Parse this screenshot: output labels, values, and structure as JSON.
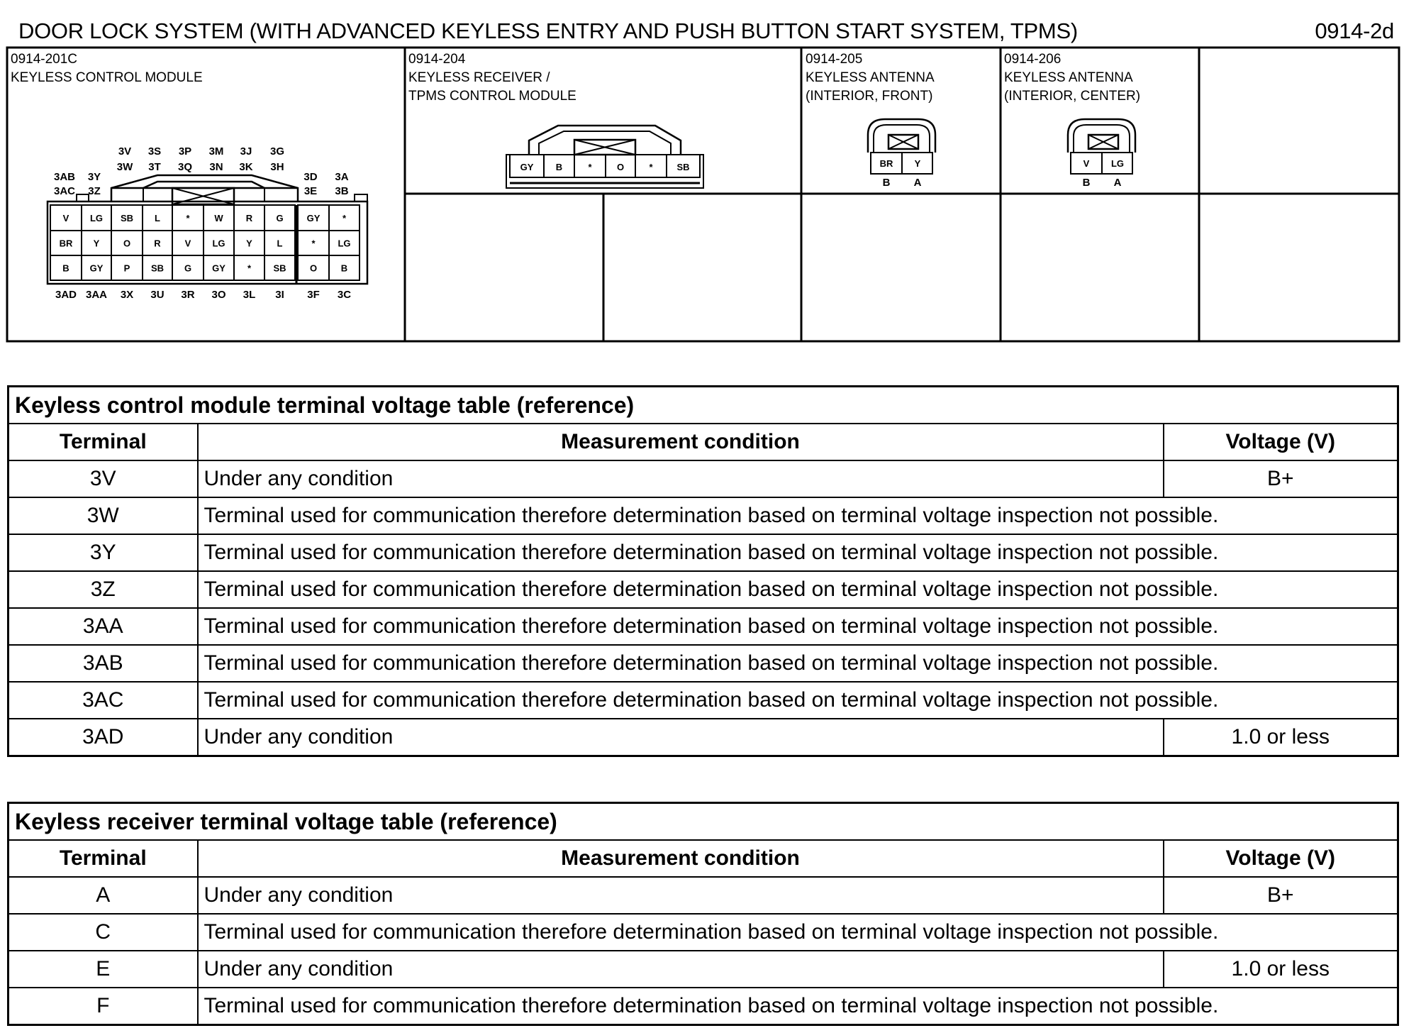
{
  "header": {
    "title": "DOOR LOCK SYSTEM (WITH ADVANCED KEYLESS ENTRY AND PUSH BUTTON START SYSTEM, TPMS)",
    "page_code": "0914-2d"
  },
  "connectors": {
    "kcm": {
      "code": "0914-201C",
      "name": "KEYLESS CONTROL MODULE",
      "top_labels_1": [
        "3V",
        "3S",
        "3P",
        "3M",
        "3J",
        "3G"
      ],
      "top_labels_2": [
        "3W",
        "3T",
        "3Q",
        "3N",
        "3K",
        "3H"
      ],
      "left_labels_1": [
        "3AB",
        "3Y"
      ],
      "left_labels_2": [
        "3AC",
        "3Z"
      ],
      "right_labels_1": [
        "3D",
        "3A"
      ],
      "right_labels_2": [
        "3E",
        "3B"
      ],
      "rows": [
        [
          "V",
          "LG",
          "SB",
          "L",
          "*",
          "W",
          "R",
          "G",
          "GY",
          "*"
        ],
        [
          "BR",
          "Y",
          "O",
          "R",
          "V",
          "LG",
          "Y",
          "L",
          "*",
          "LG"
        ],
        [
          "B",
          "GY",
          "P",
          "SB",
          "G",
          "GY",
          "*",
          "SB",
          "O",
          "B"
        ]
      ],
      "bottom_labels": [
        "3AD",
        "3AA",
        "3X",
        "3U",
        "3R",
        "3O",
        "3L",
        "3I",
        "3F",
        "3C"
      ]
    },
    "receiver": {
      "code": "0914-204",
      "name_line1": "KEYLESS RECEIVER /",
      "name_line2": "TPMS CONTROL MODULE",
      "cells": [
        "GY",
        "B",
        "*",
        "O",
        "*",
        "SB"
      ]
    },
    "antenna_front": {
      "code": "0914-205",
      "name_line1": "KEYLESS ANTENNA",
      "name_line2": "(INTERIOR, FRONT)",
      "cells": [
        "BR",
        "Y"
      ],
      "pins": [
        "B",
        "A"
      ]
    },
    "antenna_center": {
      "code": "0914-206",
      "name_line1": "KEYLESS ANTENNA",
      "name_line2": "(INTERIOR, CENTER)",
      "cells": [
        "V",
        "LG"
      ],
      "pins": [
        "B",
        "A"
      ]
    }
  },
  "table1": {
    "caption": "Keyless control module terminal voltage table (reference)",
    "headers": [
      "Terminal",
      "Measurement condition",
      "Voltage (V)"
    ],
    "rows": [
      {
        "terminal": "3V",
        "condition": "Under any condition",
        "voltage": "B+"
      },
      {
        "terminal": "3W",
        "condition": "Terminal used for communication therefore determination based on terminal voltage inspection not possible."
      },
      {
        "terminal": "3Y",
        "condition": "Terminal used for communication therefore determination based on terminal voltage inspection not possible."
      },
      {
        "terminal": "3Z",
        "condition": "Terminal used for communication therefore determination based on terminal voltage inspection not possible."
      },
      {
        "terminal": "3AA",
        "condition": "Terminal used for communication therefore determination based on terminal voltage inspection not possible."
      },
      {
        "terminal": "3AB",
        "condition": "Terminal used for communication therefore determination based on terminal voltage inspection not possible."
      },
      {
        "terminal": "3AC",
        "condition": "Terminal used for communication therefore determination based on terminal voltage inspection not possible."
      },
      {
        "terminal": "3AD",
        "condition": "Under any condition",
        "voltage": "1.0 or less"
      }
    ]
  },
  "table2": {
    "caption": "Keyless receiver terminal voltage table (reference)",
    "headers": [
      "Terminal",
      "Measurement condition",
      "Voltage (V)"
    ],
    "rows": [
      {
        "terminal": "A",
        "condition": "Under any condition",
        "voltage": "B+"
      },
      {
        "terminal": "C",
        "condition": "Terminal used for communication therefore determination based on terminal voltage inspection not possible."
      },
      {
        "terminal": "E",
        "condition": "Under any condition",
        "voltage": "1.0 or less"
      },
      {
        "terminal": "F",
        "condition": "Terminal used for communication therefore determination based on terminal voltage inspection not possible."
      }
    ]
  }
}
